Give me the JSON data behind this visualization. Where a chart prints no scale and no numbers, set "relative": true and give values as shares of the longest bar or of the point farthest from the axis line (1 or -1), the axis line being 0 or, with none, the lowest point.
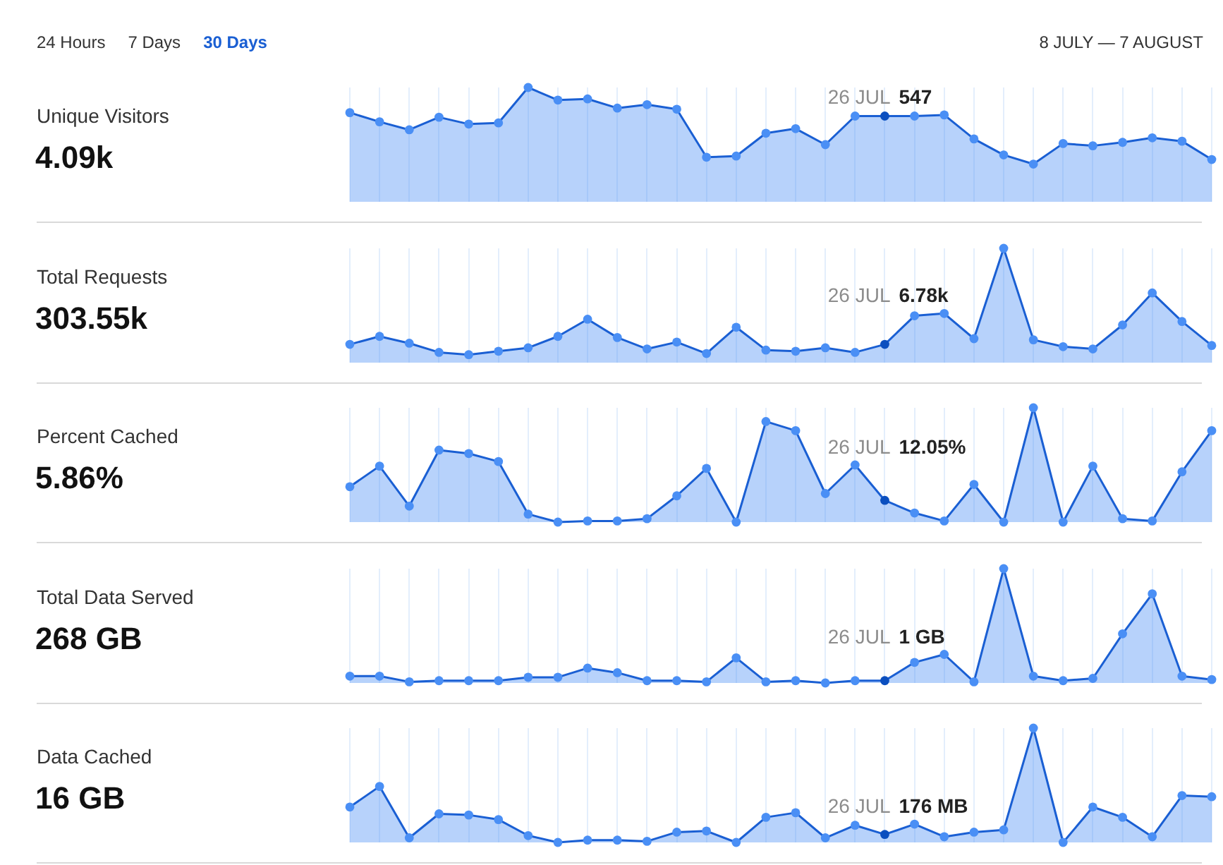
{
  "chart_data": [
    {
      "type": "other",
      "annotations": [
        "24 Hours",
        "7 Days"
      ],
      "title": "30 Days",
      "subtitle": "8 JULY — 7 AUGUST"
    },
    {
      "type": "area",
      "relative": true,
      "ylabel": "Unique Visitors",
      "annotations": [
        "4.09k",
        "26 JUL",
        "547"
      ],
      "marker": "circle",
      "grid": "x",
      "tick_labels": false,
      "categories": [
        null,
        null,
        null,
        null,
        null,
        null,
        null,
        null,
        null,
        null,
        null,
        null,
        null,
        null,
        null,
        null,
        null,
        null,
        null,
        null,
        null,
        null,
        null,
        null,
        null,
        null,
        null,
        null,
        null,
        null
      ],
      "series": [
        {
          "color": "#1a5fd3",
          "values": [
            0.78,
            0.7,
            0.63,
            0.74,
            0.68,
            0.69,
            1,
            0.89,
            0.9,
            0.82,
            0.85,
            0.81,
            0.39,
            0.4,
            0.6,
            0.64,
            0.5,
            0.75,
            0.75,
            0.75,
            0.76,
            0.55,
            0.41,
            0.33,
            0.51,
            0.49,
            0.52,
            0.56,
            0.53,
            0.37
          ],
          "colors": [
            "#4a8ff5",
            "#4a8ff5",
            "#4a8ff5",
            "#4a8ff5",
            "#4a8ff5",
            "#4a8ff5",
            "#4a8ff5",
            "#4a8ff5",
            "#4a8ff5",
            "#4a8ff5",
            "#4a8ff5",
            "#4a8ff5",
            "#4a8ff5",
            "#4a8ff5",
            "#4a8ff5",
            "#4a8ff5",
            "#4a8ff5",
            "#4a8ff5",
            "#0b4fbf",
            "#4a8ff5",
            "#4a8ff5",
            "#4a8ff5",
            "#4a8ff5",
            "#4a8ff5",
            "#4a8ff5",
            "#4a8ff5",
            "#4a8ff5",
            "#4a8ff5",
            "#4a8ff5",
            "#4a8ff5"
          ]
        }
      ]
    },
    {
      "type": "area",
      "relative": true,
      "ylabel": "Total Requests",
      "annotations": [
        "303.55k",
        "26 JUL",
        "6.78k"
      ],
      "marker": "circle",
      "grid": "x",
      "tick_labels": false,
      "categories": [
        null,
        null,
        null,
        null,
        null,
        null,
        null,
        null,
        null,
        null,
        null,
        null,
        null,
        null,
        null,
        null,
        null,
        null,
        null,
        null,
        null,
        null,
        null,
        null,
        null,
        null,
        null,
        null,
        null,
        null
      ],
      "series": [
        {
          "color": "#1a5fd3",
          "values": [
            0.16,
            0.23,
            0.17,
            0.09,
            0.07,
            0.1,
            0.13,
            0.23,
            0.38,
            0.22,
            0.12,
            0.18,
            0.08,
            0.31,
            0.11,
            0.1,
            0.13,
            0.09,
            0.16,
            0.41,
            0.43,
            0.21,
            1,
            0.2,
            0.14,
            0.12,
            0.33,
            0.61,
            0.36,
            0.15
          ],
          "colors": [
            "#4a8ff5",
            "#4a8ff5",
            "#4a8ff5",
            "#4a8ff5",
            "#4a8ff5",
            "#4a8ff5",
            "#4a8ff5",
            "#4a8ff5",
            "#4a8ff5",
            "#4a8ff5",
            "#4a8ff5",
            "#4a8ff5",
            "#4a8ff5",
            "#4a8ff5",
            "#4a8ff5",
            "#4a8ff5",
            "#4a8ff5",
            "#4a8ff5",
            "#0b4fbf",
            "#4a8ff5",
            "#4a8ff5",
            "#4a8ff5",
            "#4a8ff5",
            "#4a8ff5",
            "#4a8ff5",
            "#4a8ff5",
            "#4a8ff5",
            "#4a8ff5",
            "#4a8ff5",
            "#4a8ff5"
          ]
        }
      ]
    },
    {
      "type": "area",
      "relative": true,
      "ylabel": "Percent Cached",
      "annotations": [
        "5.86%",
        "26 JUL",
        "12.05%"
      ],
      "marker": "circle",
      "grid": "x",
      "tick_labels": false,
      "categories": [
        null,
        null,
        null,
        null,
        null,
        null,
        null,
        null,
        null,
        null,
        null,
        null,
        null,
        null,
        null,
        null,
        null,
        null,
        null,
        null,
        null,
        null,
        null,
        null,
        null,
        null,
        null,
        null,
        null,
        null
      ],
      "series": [
        {
          "color": "#1a5fd3",
          "values": [
            0.31,
            0.49,
            0.14,
            0.63,
            0.6,
            0.53,
            0.07,
            0,
            0.01,
            0.01,
            0.03,
            0.23,
            0.47,
            0,
            0.88,
            0.8,
            0.25,
            0.5,
            0.19,
            0.08,
            0.01,
            0.33,
            0,
            1,
            0,
            0.49,
            0.03,
            0.01,
            0.44,
            0.8
          ],
          "colors": [
            "#4a8ff5",
            "#4a8ff5",
            "#4a8ff5",
            "#4a8ff5",
            "#4a8ff5",
            "#4a8ff5",
            "#4a8ff5",
            "#4a8ff5",
            "#4a8ff5",
            "#4a8ff5",
            "#4a8ff5",
            "#4a8ff5",
            "#4a8ff5",
            "#4a8ff5",
            "#4a8ff5",
            "#4a8ff5",
            "#4a8ff5",
            "#4a8ff5",
            "#0b4fbf",
            "#4a8ff5",
            "#4a8ff5",
            "#4a8ff5",
            "#4a8ff5",
            "#4a8ff5",
            "#4a8ff5",
            "#4a8ff5",
            "#4a8ff5",
            "#4a8ff5",
            "#4a8ff5",
            "#4a8ff5"
          ]
        }
      ]
    },
    {
      "type": "area",
      "relative": true,
      "ylabel": "Total Data Served",
      "annotations": [
        "268 GB",
        "26 JUL",
        "1 GB"
      ],
      "marker": "circle",
      "grid": "x",
      "tick_labels": false,
      "categories": [
        null,
        null,
        null,
        null,
        null,
        null,
        null,
        null,
        null,
        null,
        null,
        null,
        null,
        null,
        null,
        null,
        null,
        null,
        null,
        null,
        null,
        null,
        null,
        null,
        null,
        null,
        null,
        null,
        null,
        null
      ],
      "series": [
        {
          "color": "#1a5fd3",
          "values": [
            0.06,
            0.06,
            0.01,
            0.02,
            0.02,
            0.02,
            0.05,
            0.05,
            0.13,
            0.09,
            0.02,
            0.02,
            0.01,
            0.22,
            0.01,
            0.02,
            0,
            0.02,
            0.02,
            0.18,
            0.25,
            0.01,
            1,
            0.06,
            0.02,
            0.04,
            0.43,
            0.78,
            0.06,
            0.03
          ],
          "colors": [
            "#4a8ff5",
            "#4a8ff5",
            "#4a8ff5",
            "#4a8ff5",
            "#4a8ff5",
            "#4a8ff5",
            "#4a8ff5",
            "#4a8ff5",
            "#4a8ff5",
            "#4a8ff5",
            "#4a8ff5",
            "#4a8ff5",
            "#4a8ff5",
            "#4a8ff5",
            "#4a8ff5",
            "#4a8ff5",
            "#4a8ff5",
            "#4a8ff5",
            "#0b4fbf",
            "#4a8ff5",
            "#4a8ff5",
            "#4a8ff5",
            "#4a8ff5",
            "#4a8ff5",
            "#4a8ff5",
            "#4a8ff5",
            "#4a8ff5",
            "#4a8ff5",
            "#4a8ff5",
            "#4a8ff5"
          ]
        }
      ]
    },
    {
      "type": "area",
      "relative": true,
      "ylabel": "Data Cached",
      "annotations": [
        "16 GB",
        "26 JUL",
        "176 MB"
      ],
      "marker": "circle",
      "grid": "x",
      "tick_labels": false,
      "categories": [
        null,
        null,
        null,
        null,
        null,
        null,
        null,
        null,
        null,
        null,
        null,
        null,
        null,
        null,
        null,
        null,
        null,
        null,
        null,
        null,
        null,
        null,
        null,
        null,
        null,
        null,
        null,
        null,
        null,
        null
      ],
      "series": [
        {
          "color": "#1a5fd3",
          "values": [
            0.31,
            0.49,
            0.04,
            0.25,
            0.24,
            0.2,
            0.06,
            0,
            0.02,
            0.02,
            0.01,
            0.09,
            0.1,
            0,
            0.22,
            0.26,
            0.04,
            0.15,
            0.07,
            0.16,
            0.05,
            0.09,
            0.11,
            1,
            0,
            0.31,
            0.22,
            0.05,
            0.41,
            0.4
          ],
          "colors": [
            "#4a8ff5",
            "#4a8ff5",
            "#4a8ff5",
            "#4a8ff5",
            "#4a8ff5",
            "#4a8ff5",
            "#4a8ff5",
            "#4a8ff5",
            "#4a8ff5",
            "#4a8ff5",
            "#4a8ff5",
            "#4a8ff5",
            "#4a8ff5",
            "#4a8ff5",
            "#4a8ff5",
            "#4a8ff5",
            "#4a8ff5",
            "#4a8ff5",
            "#0b4fbf",
            "#4a8ff5",
            "#4a8ff5",
            "#4a8ff5",
            "#4a8ff5",
            "#4a8ff5",
            "#4a8ff5",
            "#4a8ff5",
            "#4a8ff5",
            "#4a8ff5",
            "#4a8ff5",
            "#4a8ff5"
          ]
        }
      ]
    }
  ]
}
